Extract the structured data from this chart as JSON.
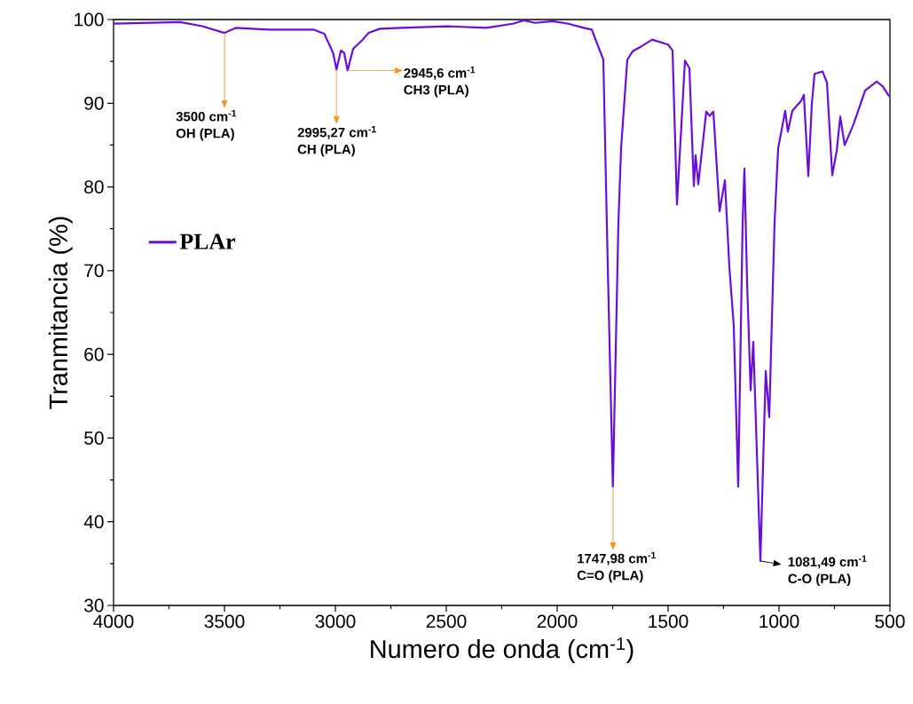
{
  "chart_data": {
    "type": "line",
    "xlabel": "Numero de onda (cm$^{-1}$)",
    "ylabel": "Tranmitancia (%)",
    "xlim": [
      4000,
      500
    ],
    "ylim": [
      30,
      100
    ],
    "xticks": [
      4000,
      3500,
      3000,
      2500,
      2000,
      1500,
      1000,
      500
    ],
    "yticks": [
      30,
      40,
      50,
      60,
      70,
      80,
      90,
      100
    ],
    "grid": false,
    "legend": "left",
    "series": [
      {
        "name": "PLAr",
        "color": "#6a0ddb",
        "x": [
          4000,
          3700,
          3600,
          3500,
          3450,
          3300,
          3100,
          3050,
          3010,
          2995,
          2975,
          2960,
          2945,
          2920,
          2880,
          2850,
          2800,
          2700,
          2500,
          2320,
          2200,
          2150,
          2100,
          2020,
          1950,
          1880,
          1844,
          1792,
          1772,
          1749,
          1724,
          1712,
          1684,
          1660,
          1620,
          1572,
          1500,
          1480,
          1460,
          1424,
          1404,
          1384,
          1376,
          1364,
          1328,
          1312,
          1296,
          1268,
          1244,
          1224,
          1204,
          1184,
          1164,
          1156,
          1144,
          1128,
          1116,
          1084,
          1060,
          1044,
          1020,
          1004,
          972,
          960,
          940,
          900,
          888,
          868,
          852,
          840,
          804,
          784,
          760,
          740,
          724,
          704,
          664,
          612,
          560,
          532,
          508,
          500
        ],
        "values": [
          99.5,
          99.7,
          99.2,
          98.4,
          99.0,
          98.8,
          98.8,
          98.3,
          96.0,
          94.0,
          96.3,
          96.0,
          93.9,
          96.5,
          97.5,
          98.4,
          98.9,
          99.0,
          99.2,
          99.0,
          99.5,
          99.9,
          99.6,
          99.8,
          99.5,
          99.0,
          98.8,
          95.2,
          70.5,
          44.2,
          75.8,
          84.6,
          95.2,
          96.2,
          96.8,
          97.6,
          97.0,
          96.3,
          77.9,
          95.1,
          94.2,
          80.1,
          83.8,
          80.3,
          89.0,
          88.5,
          89.0,
          77.1,
          80.8,
          70.5,
          63.4,
          44.2,
          75.8,
          82.2,
          68.7,
          55.7,
          61.5,
          35.3,
          58.0,
          52.5,
          75.8,
          84.6,
          89.1,
          86.6,
          89.1,
          90.3,
          91.0,
          81.3,
          89.9,
          93.5,
          93.8,
          92.5,
          81.4,
          84.3,
          88.4,
          85.0,
          87.5,
          91.5,
          92.6,
          92.0,
          91.0,
          90.8
        ]
      }
    ],
    "annotations": [
      {
        "text": "3500 cm$^{-1}$",
        "x": 3500,
        "y": 98.4
      },
      "OH (PLA)",
      {
        "text": "2995,27 cm$^{-1}$",
        "x": 2995.27,
        "y": 94.0
      },
      "CH  (PLA)",
      {
        "text": "2945,6 cm$^{-1}$",
        "x": 2945.6,
        "y": 93.9
      },
      "CH3  (PLA)",
      {
        "text": "1747,98  cm$^{-1}$",
        "x": 1747.98,
        "y": 44.2
      },
      "C=O  (PLA)",
      {
        "text": "1081,49  cm$^{-1}$",
        "x": 1081.49,
        "y": 35.3
      },
      "C-O  (PLA)"
    ]
  }
}
